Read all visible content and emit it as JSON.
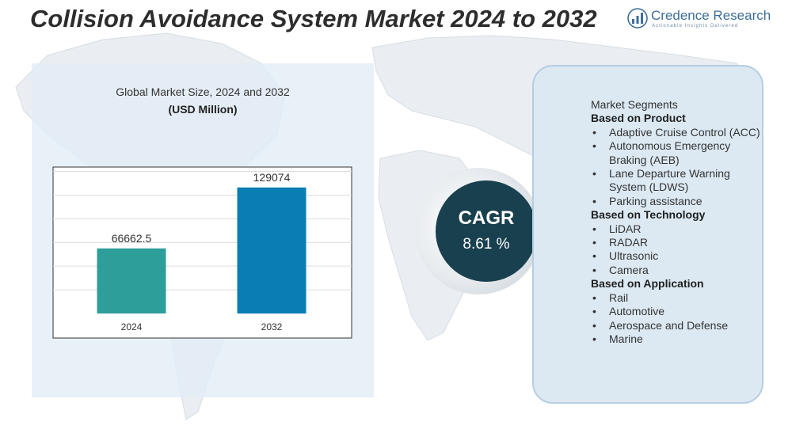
{
  "header": {
    "title": "Collision Avoidance System Market 2024 to 2032"
  },
  "logo": {
    "name": "Credence Research",
    "tagline": "Actionable Insights Delivered",
    "icon": "bar-chart-logo-icon"
  },
  "colors": {
    "bar_2024": "#2e9e9a",
    "bar_2032": "#0b7db5",
    "cagr_circle": "#19404f",
    "panel_bg": "#dce9f3"
  },
  "chart_data": {
    "type": "bar",
    "title": "Global Market Size,  2024 and 2032",
    "subtitle": "(USD Million)",
    "categories": [
      "2024",
      "2032"
    ],
    "values": [
      66662.5,
      129074
    ],
    "value_labels": [
      "66662.5",
      "129074"
    ],
    "xlabel": "",
    "ylabel": "",
    "ylim": [
      0,
      150000
    ],
    "grid": true
  },
  "cagr": {
    "label": "CAGR",
    "value": "8.61 %"
  },
  "segments": {
    "heading": "Market Segments",
    "groups": [
      {
        "title": "Based on Product",
        "items": [
          "Adaptive Cruise Control (ACC)",
          "Autonomous Emergency Braking (AEB)",
          "Lane Departure Warning System (LDWS)",
          "Parking assistance"
        ]
      },
      {
        "title": "Based on Technology",
        "items": [
          "LiDAR",
          "RADAR",
          "Ultrasonic",
          "Camera"
        ]
      },
      {
        "title": "Based on Application",
        "items": [
          "Rail",
          "Automotive",
          "Aerospace and Defense",
          "Marine"
        ]
      }
    ]
  }
}
